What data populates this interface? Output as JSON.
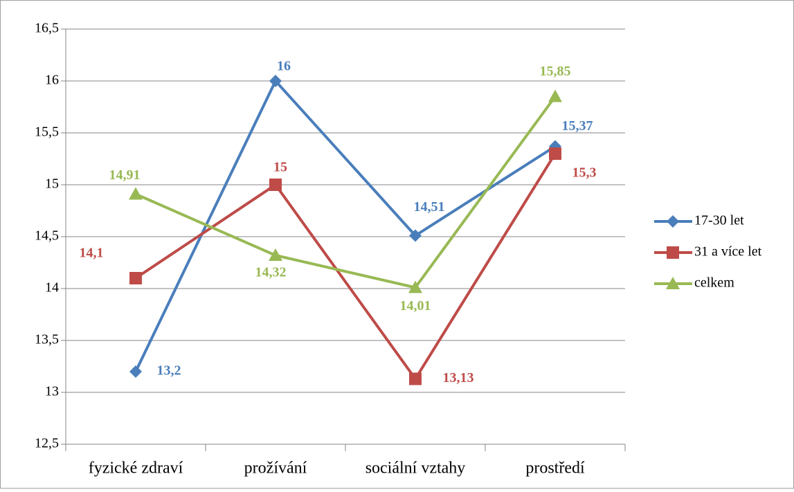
{
  "chart_data": {
    "type": "line",
    "categories": [
      "fyzické zdraví",
      "prožívání",
      "sociální vztahy",
      "prostředí"
    ],
    "series": [
      {
        "name": "17-30 let",
        "color": "#4a7ebb",
        "marker": "diamond",
        "values": [
          13.2,
          16,
          14.51,
          15.37
        ],
        "value_labels": [
          "13,2",
          "16",
          "14,51",
          "15,37"
        ]
      },
      {
        "name": "31 a více let",
        "color": "#be4b48",
        "marker": "square",
        "values": [
          14.1,
          15,
          13.13,
          15.3
        ],
        "value_labels": [
          "14,1",
          "15",
          "13,13",
          "15,3"
        ]
      },
      {
        "name": "celkem",
        "color": "#98b954",
        "marker": "triangle",
        "values": [
          14.91,
          14.32,
          14.01,
          15.85
        ],
        "value_labels": [
          "14,91",
          "14,32",
          "14,01",
          "15,85"
        ]
      }
    ],
    "ylim": [
      12.5,
      16.5
    ],
    "yticks": [
      {
        "value": 12.5,
        "label": "12,5"
      },
      13,
      {
        "value": 13.5,
        "label": "13,5"
      },
      14,
      {
        "value": 14.5,
        "label": "14,5"
      },
      15,
      {
        "value": 15.5,
        "label": "15,5"
      },
      16,
      {
        "value": 16.5,
        "label": "16,5"
      }
    ],
    "grid": true,
    "legend": "right"
  }
}
